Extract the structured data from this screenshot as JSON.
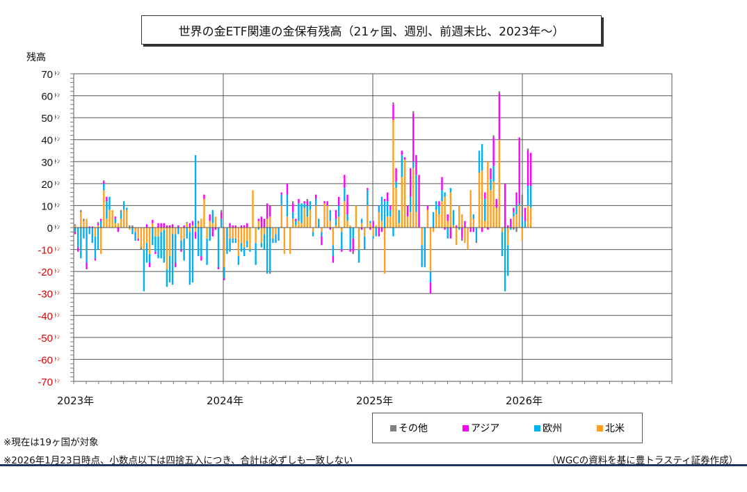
{
  "chart_data": {
    "type": "bar",
    "stacked": true,
    "title": "世界の金ETF関連の金保有残高（21ヶ国、週別、前週末比、2023年～）",
    "ylabel": "残高",
    "ylim": [
      -70,
      70
    ],
    "yticks": [
      70,
      60,
      50,
      40,
      30,
      20,
      10,
      0,
      -10,
      -20,
      -30,
      -40,
      -50,
      -60,
      -70
    ],
    "ytick_unit": "ﾄﾝ",
    "xticks": [
      "2023年",
      "2024年",
      "2025年",
      "2026年"
    ],
    "x_range_years": [
      2023,
      2027
    ],
    "grid": true,
    "legend_position": "bottom-right",
    "series": [
      {
        "name": "その他",
        "color": "#808080"
      },
      {
        "name": "アジア",
        "color": "#ff00ff"
      },
      {
        "name": "欧州",
        "color": "#00b0f0"
      },
      {
        "name": "北米",
        "color": "#ffa020"
      }
    ],
    "weekly_values_order": [
      "北米",
      "欧州",
      "アジア",
      "その他"
    ],
    "weeks": [
      [
        1,
        -2,
        -1,
        0.5
      ],
      [
        0,
        -9,
        -2,
        0
      ],
      [
        7,
        -14,
        0,
        1
      ],
      [
        3,
        -5,
        0,
        1
      ],
      [
        4,
        -16,
        -3,
        0
      ],
      [
        0,
        -3,
        0.5,
        0
      ],
      [
        0,
        -7,
        0.5,
        0
      ],
      [
        -4,
        -10,
        -1,
        0
      ],
      [
        1,
        -10,
        1,
        0.5
      ],
      [
        -12,
        3,
        1,
        0
      ],
      [
        17,
        3,
        1,
        0.5
      ],
      [
        4,
        8,
        2,
        0
      ],
      [
        8,
        6,
        0,
        0
      ],
      [
        8,
        0,
        0,
        0
      ],
      [
        2,
        2,
        1,
        0
      ],
      [
        2,
        0,
        -2,
        0
      ],
      [
        4,
        3,
        0,
        1
      ],
      [
        8,
        4,
        0,
        0
      ],
      [
        8,
        1,
        0,
        0
      ],
      [
        -1,
        0,
        0,
        1
      ],
      [
        0,
        -3,
        0,
        1
      ],
      [
        -2,
        -4,
        0,
        0
      ],
      [
        -5,
        0,
        -1,
        0
      ],
      [
        -9,
        0,
        0,
        -1
      ],
      [
        -10,
        -19,
        0,
        0
      ],
      [
        -7,
        -9,
        1.5,
        0
      ],
      [
        -12,
        -4,
        -2,
        0
      ],
      [
        2,
        -8,
        1.5,
        0
      ],
      [
        -4,
        -7,
        -1,
        0
      ],
      [
        -4,
        -10,
        2,
        0
      ],
      [
        -2,
        -12,
        2,
        0
      ],
      [
        -1,
        -15,
        2,
        0
      ],
      [
        -19,
        -8,
        1,
        0
      ],
      [
        -13,
        -12,
        1,
        0
      ],
      [
        -3,
        -23,
        1.5,
        0
      ],
      [
        -3,
        -13,
        -2,
        0
      ],
      [
        0,
        -3,
        1,
        0
      ],
      [
        -6,
        -4,
        -1,
        0
      ],
      [
        -5,
        -10,
        1,
        0
      ],
      [
        2,
        -5,
        0,
        0.5
      ],
      [
        -2,
        -24,
        2,
        0
      ],
      [
        1,
        -25,
        2,
        0
      ],
      [
        -2,
        33,
        -3,
        0
      ],
      [
        2,
        -13,
        0,
        1
      ],
      [
        4,
        -13,
        -2,
        0
      ],
      [
        13,
        0,
        2,
        0
      ],
      [
        -5,
        -12,
        0,
        0
      ],
      [
        3,
        -6,
        3,
        0
      ],
      [
        2,
        6,
        -4,
        0
      ],
      [
        5,
        0,
        -1,
        0
      ],
      [
        0,
        -18,
        -1,
        0
      ],
      [
        0,
        4,
        3,
        1
      ],
      [
        -18,
        -5,
        -1,
        0
      ],
      [
        0,
        -12,
        0,
        0
      ],
      [
        -5,
        -6,
        2,
        0
      ],
      [
        -5,
        -2,
        1,
        0
      ],
      [
        -5,
        -2,
        1,
        0
      ],
      [
        -13,
        -4,
        0,
        0
      ],
      [
        -7,
        -4,
        1,
        0
      ],
      [
        -9,
        -4,
        1,
        0
      ],
      [
        -6,
        -3,
        2,
        0
      ],
      [
        -10,
        -1,
        0,
        0
      ],
      [
        17,
        0,
        0,
        0
      ],
      [
        -7,
        -10,
        0,
        0
      ],
      [
        3,
        -1,
        1,
        0
      ],
      [
        -7,
        -2,
        5,
        0
      ],
      [
        -3,
        -7,
        4,
        0
      ],
      [
        4,
        -21,
        7,
        0
      ],
      [
        5,
        -20,
        5,
        -1
      ],
      [
        -5,
        -2,
        0,
        0
      ],
      [
        -3,
        -4,
        0,
        0
      ],
      [
        0,
        -6,
        0,
        0
      ],
      [
        10,
        5,
        1,
        0
      ],
      [
        -12,
        0,
        0,
        0
      ],
      [
        5,
        10,
        5,
        0
      ],
      [
        -12,
        0,
        0,
        0
      ],
      [
        4,
        3,
        4,
        1
      ],
      [
        1,
        2,
        1,
        0
      ],
      [
        3,
        8,
        2,
        0
      ],
      [
        2,
        9,
        0,
        0
      ],
      [
        9,
        2,
        1,
        0
      ],
      [
        5,
        5,
        2,
        1
      ],
      [
        8,
        4,
        0,
        0
      ],
      [
        -2,
        -2,
        0,
        0
      ],
      [
        10,
        3,
        2,
        0
      ],
      [
        0,
        4,
        0,
        0
      ],
      [
        -2,
        -2,
        -4,
        0
      ],
      [
        11,
        0,
        1,
        0
      ],
      [
        10,
        0,
        2,
        0
      ],
      [
        3,
        5,
        -1,
        0
      ],
      [
        -8,
        -5,
        -3,
        0
      ],
      [
        1,
        3,
        4,
        0
      ],
      [
        5,
        5,
        4,
        0
      ],
      [
        -2,
        -8,
        -1,
        0
      ],
      [
        12,
        6,
        6,
        0
      ],
      [
        3,
        3,
        9,
        0
      ],
      [
        1,
        -10,
        -1,
        0
      ],
      [
        0,
        -5,
        -6,
        -1
      ],
      [
        10,
        0,
        0,
        0
      ],
      [
        -10,
        -6,
        0,
        0
      ],
      [
        2,
        2,
        -1,
        0
      ],
      [
        -4,
        -6,
        0,
        0
      ],
      [
        10,
        7,
        1,
        0
      ],
      [
        2,
        1,
        -1,
        0
      ],
      [
        -4,
        -1,
        3,
        0
      ],
      [
        1,
        -4,
        0,
        0
      ],
      [
        7,
        3,
        -4,
        0
      ],
      [
        3,
        11,
        -2,
        0
      ],
      [
        -21,
        12,
        1,
        0
      ],
      [
        5,
        7,
        4,
        0
      ],
      [
        5,
        3,
        2,
        0
      ],
      [
        49,
        -4,
        7,
        1
      ],
      [
        18,
        3,
        6,
        0
      ],
      [
        2,
        6,
        0,
        0
      ],
      [
        23,
        10,
        2,
        0
      ],
      [
        31,
        0,
        1,
        0
      ],
      [
        5,
        0,
        5,
        0
      ],
      [
        7,
        7,
        13,
        0
      ],
      [
        27,
        3,
        22,
        1
      ],
      [
        7,
        17,
        9,
        0
      ],
      [
        0,
        0,
        24,
        0
      ],
      [
        -8,
        -10,
        0,
        0
      ],
      [
        0,
        -18,
        0,
        0
      ],
      [
        8,
        0,
        2,
        0
      ],
      [
        -20,
        -5,
        -5,
        0
      ],
      [
        -2,
        7,
        0,
        0
      ],
      [
        8,
        4,
        0,
        0
      ],
      [
        6,
        4,
        2,
        0
      ],
      [
        12,
        5,
        6,
        0
      ],
      [
        14,
        2,
        -1,
        0
      ],
      [
        3,
        -5,
        3,
        0
      ],
      [
        16,
        2,
        -5,
        0
      ],
      [
        1,
        7,
        0,
        0
      ],
      [
        -8,
        0,
        1,
        0
      ],
      [
        10,
        -1,
        0,
        0
      ],
      [
        6,
        0,
        -5,
        -1
      ],
      [
        -7,
        0,
        3,
        0
      ],
      [
        -10,
        0,
        0,
        0
      ],
      [
        17,
        0,
        -2,
        0
      ],
      [
        4,
        2,
        -2,
        0
      ],
      [
        0,
        -6,
        0,
        -1
      ],
      [
        25,
        10,
        0,
        0
      ],
      [
        26,
        12,
        -2,
        0
      ],
      [
        3,
        10,
        3,
        0
      ],
      [
        30,
        0,
        -1,
        0
      ],
      [
        17,
        5,
        5,
        0
      ],
      [
        21,
        7,
        13,
        1
      ],
      [
        9,
        0,
        4,
        0
      ],
      [
        40,
        0,
        21,
        1
      ],
      [
        -2,
        -11,
        0,
        0
      ],
      [
        0,
        -29,
        20,
        0
      ],
      [
        -8,
        -14,
        1,
        0
      ],
      [
        0,
        -1,
        4,
        0
      ],
      [
        5,
        2,
        2,
        -1
      ],
      [
        6,
        4,
        6,
        -2
      ],
      [
        10,
        1,
        30,
        0
      ],
      [
        -6,
        5,
        0,
        10
      ],
      [
        0,
        3,
        6,
        0
      ],
      [
        10,
        9,
        16,
        1
      ],
      [
        9,
        10,
        15,
        0
      ]
    ]
  },
  "notes": {
    "countries": "※現在は19ヶ国が対象",
    "disclaimer": "※2026年1月23日時点、小数点以下は四捨五入につき、合計は必ずしも一致しない",
    "source": "（WGCの資料を基に豊トラスティ証券作成）"
  }
}
